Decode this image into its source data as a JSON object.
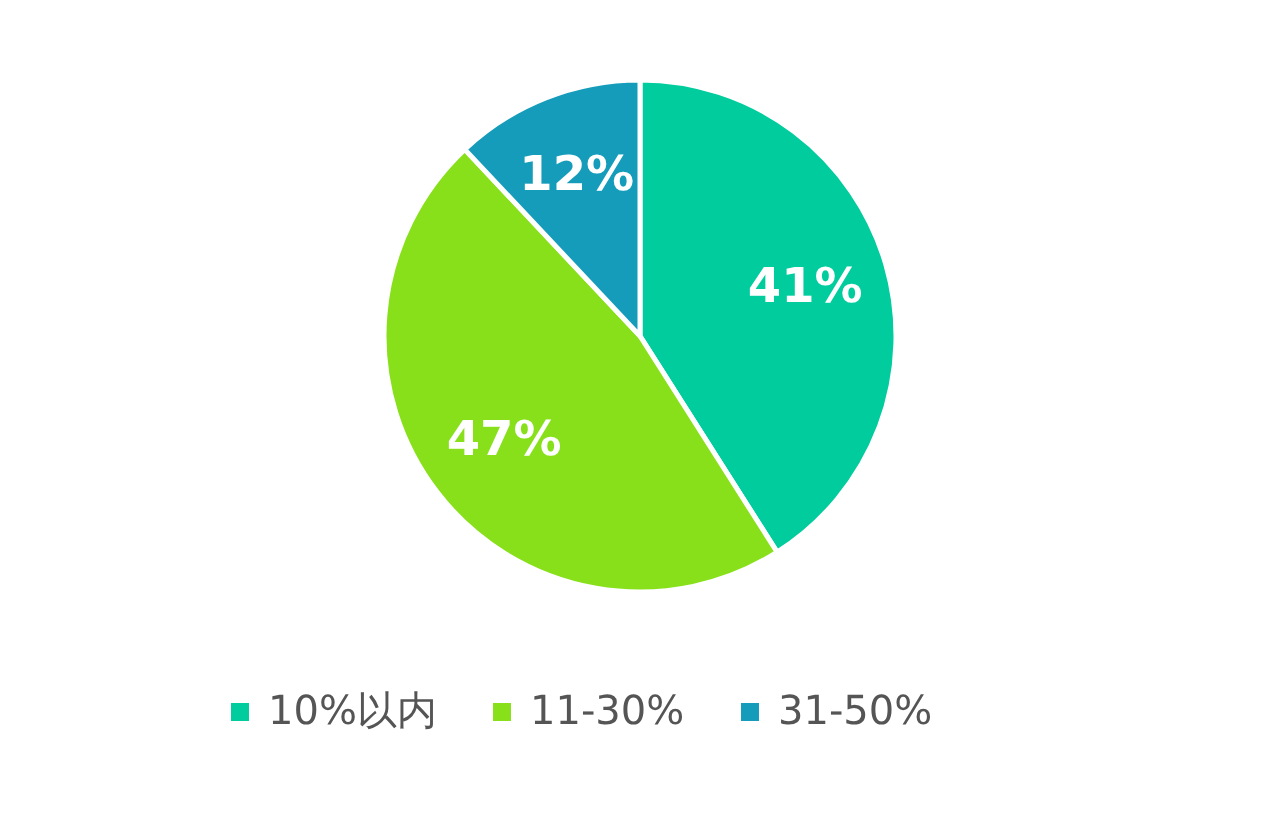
{
  "chart_data": {
    "type": "pie",
    "categories": [
      "10%以内",
      "11-30%",
      "31-50%"
    ],
    "values": [
      41,
      47,
      12
    ],
    "colors": [
      "#00cc9e",
      "#88e01a",
      "#159cbb"
    ],
    "value_labels": [
      "41%",
      "47%",
      "12%"
    ],
    "legend": "bottom"
  }
}
